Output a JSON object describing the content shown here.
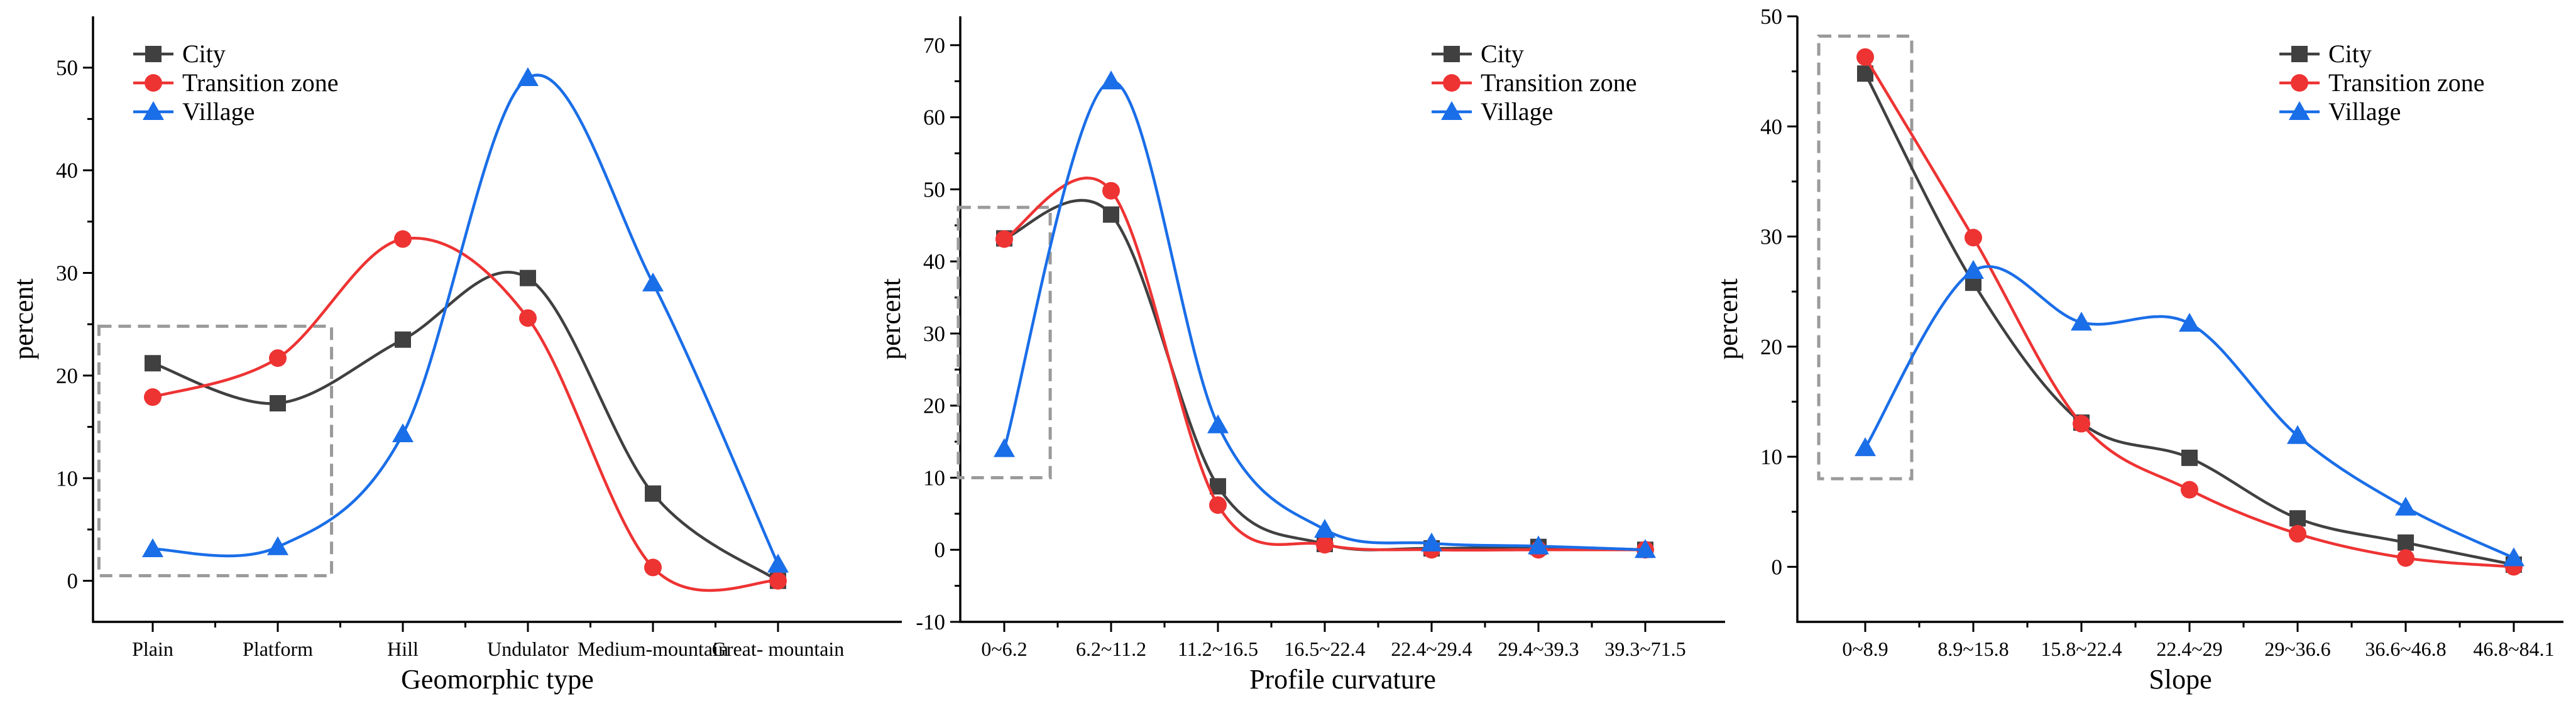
{
  "colors": {
    "City": "#404040",
    "Transition zone": "#ee3333",
    "Village": "#1a6ee8",
    "highlight": "#9a9a9a"
  },
  "chart_data": [
    {
      "type": "line",
      "xlabel": "Geomorphic type",
      "ylabel": "percent",
      "ylim": [
        -4,
        55
      ],
      "yticks": [
        0,
        10,
        20,
        30,
        40,
        50
      ],
      "categories": [
        "Plain",
        "Platform",
        "Hill",
        "Undulator",
        "Medium-mountain",
        "Great- mountain"
      ],
      "series": [
        {
          "name": "City",
          "marker": "square",
          "values": [
            21.2,
            17.3,
            23.5,
            29.5,
            8.5,
            0
          ]
        },
        {
          "name": "Transition zone",
          "marker": "circle",
          "values": [
            17.9,
            21.7,
            33.3,
            25.6,
            1.3,
            0
          ]
        },
        {
          "name": "Village",
          "marker": "triangle",
          "values": [
            3.1,
            3.3,
            14.3,
            49.0,
            29.0,
            1.6
          ]
        }
      ],
      "highlight": {
        "from_category": "Plain",
        "to_category": "Platform",
        "ymin": 0.5,
        "ymax": 24.8
      },
      "legend": "top-left"
    },
    {
      "type": "line",
      "xlabel": "Profile curvature",
      "ylabel": "percent",
      "ylim": [
        -10,
        74
      ],
      "yticks": [
        -10,
        0,
        10,
        20,
        30,
        40,
        50,
        60,
        70
      ],
      "categories": [
        "0~6.2",
        "6.2~11.2",
        "11.2~16.5",
        "16.5~22.4",
        "22.4~29.4",
        "29.4~39.3",
        "39.3~71.5"
      ],
      "series": [
        {
          "name": "City",
          "marker": "square",
          "values": [
            43.2,
            46.5,
            8.8,
            0.8,
            0.2,
            0.4,
            0
          ]
        },
        {
          "name": "Transition zone",
          "marker": "circle",
          "values": [
            43.1,
            49.8,
            6.2,
            0.7,
            0,
            0,
            0
          ]
        },
        {
          "name": "Village",
          "marker": "triangle",
          "values": [
            14.0,
            65.0,
            17.3,
            2.8,
            0.9,
            0.5,
            0
          ]
        }
      ],
      "highlight": {
        "from_category": "0~6.2",
        "to_category": "0~6.2",
        "ymin": 10,
        "ymax": 47.5
      },
      "legend": "top-right"
    },
    {
      "type": "line",
      "xlabel": "Slope",
      "ylabel": "percent",
      "ylim": [
        -5,
        50
      ],
      "yticks": [
        0,
        10,
        20,
        30,
        40,
        50
      ],
      "categories": [
        "0~8.9",
        "8.9~15.8",
        "15.8~22.4",
        "22.4~29",
        "29~36.6",
        "36.6~46.8",
        "46.8~84.1"
      ],
      "series": [
        {
          "name": "City",
          "marker": "square",
          "values": [
            44.8,
            25.8,
            13.1,
            9.9,
            4.4,
            2.2,
            0.2
          ]
        },
        {
          "name": "Transition zone",
          "marker": "circle",
          "values": [
            46.3,
            29.9,
            13.0,
            7.0,
            3.0,
            0.8,
            0
          ]
        },
        {
          "name": "Village",
          "marker": "triangle",
          "values": [
            10.8,
            26.9,
            22.2,
            22.1,
            11.9,
            5.4,
            0.8
          ]
        }
      ],
      "highlight": {
        "from_category": "0~8.9",
        "to_category": "0~8.9",
        "ymin": 8,
        "ymax": 48.2
      },
      "legend": "top-right"
    }
  ]
}
